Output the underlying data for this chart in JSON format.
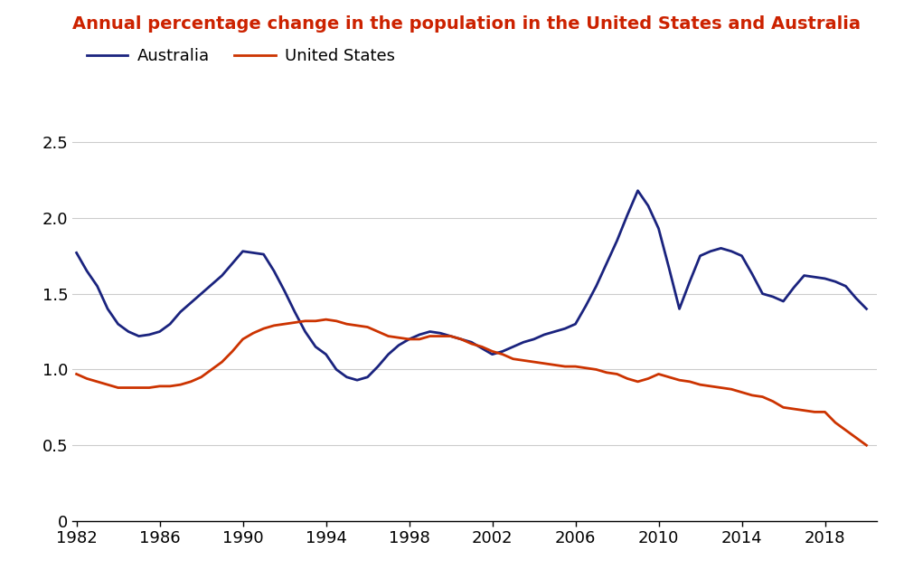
{
  "title": "Annual percentage change in the population in the United States and Australia",
  "title_color": "#cc2200",
  "australia_color": "#1a237e",
  "us_color": "#cc3300",
  "legend_labels": [
    "Australia",
    "United States"
  ],
  "xlim": [
    1981.8,
    2020.5
  ],
  "ylim": [
    0,
    2.75
  ],
  "yticks": [
    0,
    0.5,
    1.0,
    1.5,
    2.0,
    2.5
  ],
  "xticks": [
    1982,
    1986,
    1990,
    1994,
    1998,
    2002,
    2006,
    2010,
    2014,
    2018
  ],
  "australia_years": [
    1982.0,
    1982.5,
    1983.0,
    1983.5,
    1984.0,
    1984.5,
    1985.0,
    1985.5,
    1986.0,
    1986.5,
    1987.0,
    1987.5,
    1988.0,
    1988.5,
    1989.0,
    1989.5,
    1990.0,
    1990.5,
    1991.0,
    1991.5,
    1992.0,
    1992.5,
    1993.0,
    1993.5,
    1994.0,
    1994.5,
    1995.0,
    1995.5,
    1996.0,
    1996.5,
    1997.0,
    1997.5,
    1998.0,
    1998.5,
    1999.0,
    1999.5,
    2000.0,
    2000.5,
    2001.0,
    2001.5,
    2002.0,
    2002.5,
    2003.0,
    2003.5,
    2004.0,
    2004.5,
    2005.0,
    2005.5,
    2006.0,
    2006.5,
    2007.0,
    2007.5,
    2008.0,
    2008.5,
    2009.0,
    2009.5,
    2010.0,
    2010.5,
    2011.0,
    2011.5,
    2012.0,
    2012.5,
    2013.0,
    2013.5,
    2014.0,
    2014.5,
    2015.0,
    2015.5,
    2016.0,
    2016.5,
    2017.0,
    2017.5,
    2018.0,
    2018.5,
    2019.0,
    2019.5,
    2020.0
  ],
  "australia_values": [
    1.77,
    1.65,
    1.55,
    1.4,
    1.3,
    1.25,
    1.22,
    1.23,
    1.25,
    1.3,
    1.38,
    1.44,
    1.5,
    1.56,
    1.62,
    1.7,
    1.78,
    1.77,
    1.76,
    1.65,
    1.52,
    1.38,
    1.25,
    1.15,
    1.1,
    1.0,
    0.95,
    0.93,
    0.95,
    1.02,
    1.1,
    1.16,
    1.2,
    1.23,
    1.25,
    1.24,
    1.22,
    1.2,
    1.18,
    1.14,
    1.1,
    1.12,
    1.15,
    1.18,
    1.2,
    1.23,
    1.25,
    1.27,
    1.3,
    1.42,
    1.55,
    1.7,
    1.85,
    2.02,
    2.18,
    2.08,
    1.93,
    1.67,
    1.4,
    1.58,
    1.75,
    1.78,
    1.8,
    1.78,
    1.75,
    1.63,
    1.5,
    1.48,
    1.45,
    1.54,
    1.62,
    1.61,
    1.6,
    1.58,
    1.55,
    1.47,
    1.4
  ],
  "us_years": [
    1982.0,
    1982.5,
    1983.0,
    1983.5,
    1984.0,
    1984.5,
    1985.0,
    1985.5,
    1986.0,
    1986.5,
    1987.0,
    1987.5,
    1988.0,
    1988.5,
    1989.0,
    1989.5,
    1990.0,
    1990.5,
    1991.0,
    1991.5,
    1992.0,
    1992.5,
    1993.0,
    1993.5,
    1994.0,
    1994.5,
    1995.0,
    1995.5,
    1996.0,
    1996.5,
    1997.0,
    1997.5,
    1998.0,
    1998.5,
    1999.0,
    1999.5,
    2000.0,
    2000.5,
    2001.0,
    2001.5,
    2002.0,
    2002.5,
    2003.0,
    2003.5,
    2004.0,
    2004.5,
    2005.0,
    2005.5,
    2006.0,
    2006.5,
    2007.0,
    2007.5,
    2008.0,
    2008.5,
    2009.0,
    2009.5,
    2010.0,
    2010.5,
    2011.0,
    2011.5,
    2012.0,
    2012.5,
    2013.0,
    2013.5,
    2014.0,
    2014.5,
    2015.0,
    2015.5,
    2016.0,
    2016.5,
    2017.0,
    2017.5,
    2018.0,
    2018.5,
    2019.0,
    2019.5,
    2020.0
  ],
  "us_values": [
    0.97,
    0.94,
    0.92,
    0.9,
    0.88,
    0.88,
    0.88,
    0.88,
    0.89,
    0.89,
    0.9,
    0.92,
    0.95,
    1.0,
    1.05,
    1.12,
    1.2,
    1.24,
    1.27,
    1.29,
    1.3,
    1.31,
    1.32,
    1.32,
    1.33,
    1.32,
    1.3,
    1.29,
    1.28,
    1.25,
    1.22,
    1.21,
    1.2,
    1.2,
    1.22,
    1.22,
    1.22,
    1.2,
    1.17,
    1.15,
    1.12,
    1.1,
    1.07,
    1.06,
    1.05,
    1.04,
    1.03,
    1.02,
    1.02,
    1.01,
    1.0,
    0.98,
    0.97,
    0.94,
    0.92,
    0.94,
    0.97,
    0.95,
    0.93,
    0.92,
    0.9,
    0.89,
    0.88,
    0.87,
    0.85,
    0.83,
    0.82,
    0.79,
    0.75,
    0.74,
    0.73,
    0.72,
    0.72,
    0.65,
    0.6,
    0.55,
    0.5
  ],
  "line_width": 2.0,
  "fig_width": 10.0,
  "fig_height": 6.4,
  "title_fontsize": 14,
  "tick_fontsize": 13,
  "legend_fontsize": 13
}
